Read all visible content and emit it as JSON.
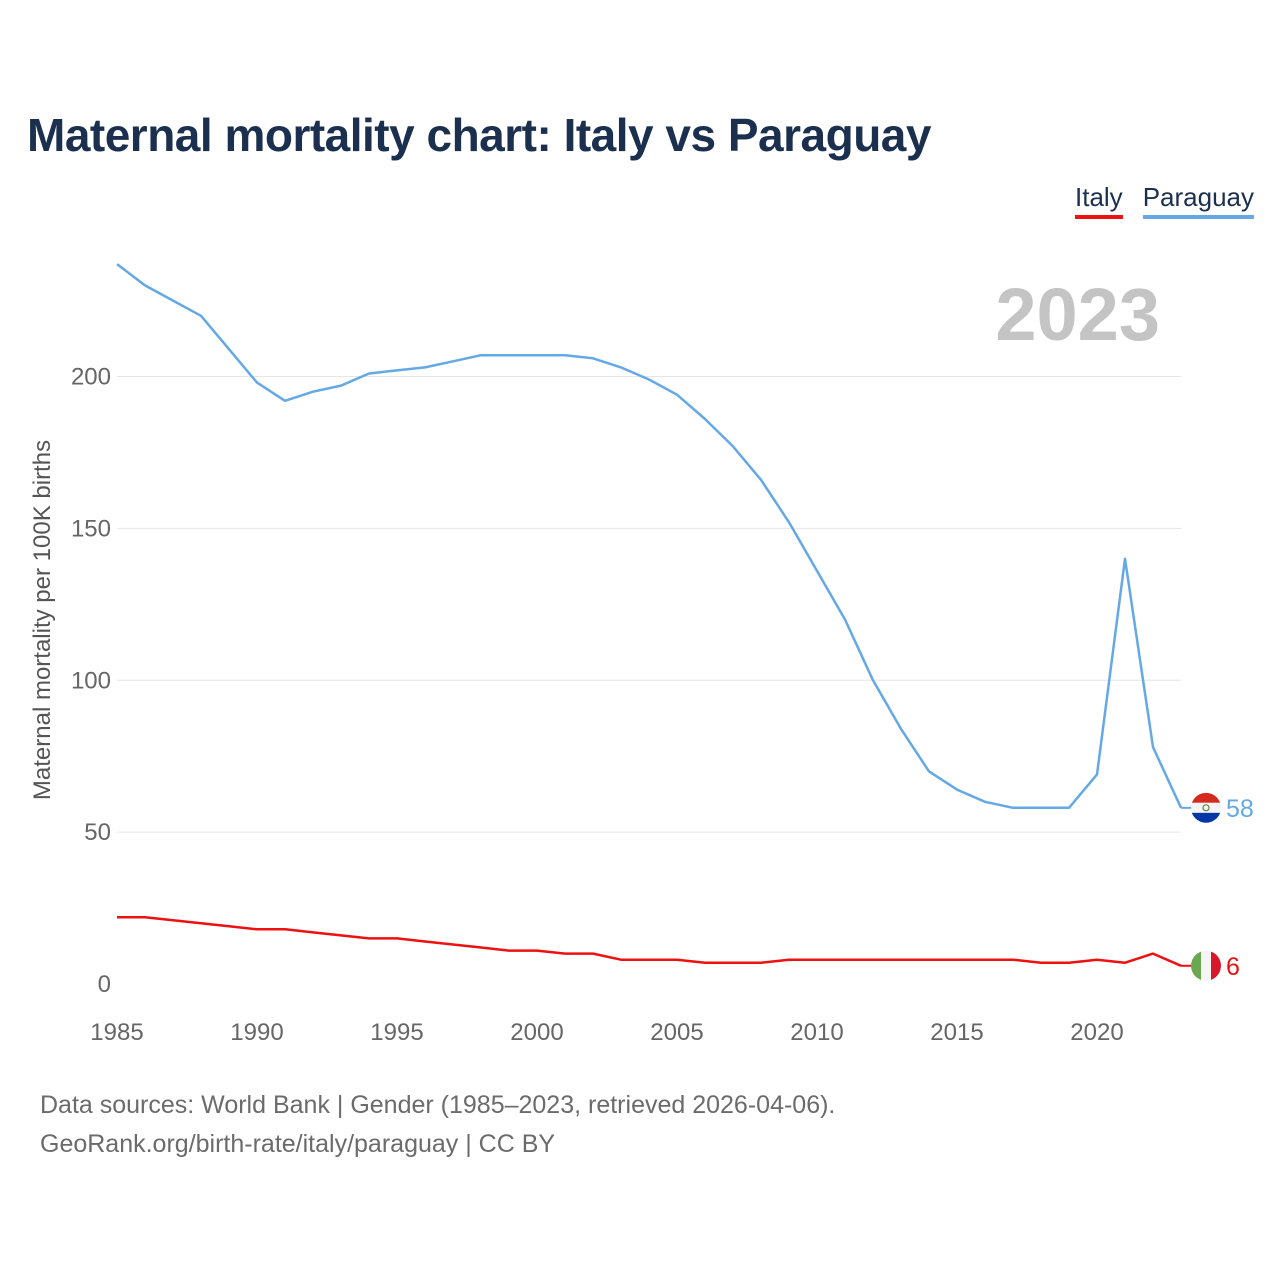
{
  "chart_data": {
    "type": "line",
    "title": "Maternal mortality chart: Italy vs Paraguay",
    "ylabel": "Maternal mortality per 100K births",
    "xlabel": "",
    "year_label": "2023",
    "xlim": [
      1985,
      2023
    ],
    "ylim": [
      0,
      240
    ],
    "x_ticks": [
      1985,
      1990,
      1995,
      2000,
      2005,
      2010,
      2015,
      2020
    ],
    "y_ticks": [
      0,
      50,
      100,
      150,
      200
    ],
    "x": [
      1985,
      1986,
      1987,
      1988,
      1989,
      1990,
      1991,
      1992,
      1993,
      1994,
      1995,
      1996,
      1997,
      1998,
      1999,
      2000,
      2001,
      2002,
      2003,
      2004,
      2005,
      2006,
      2007,
      2008,
      2009,
      2010,
      2011,
      2012,
      2013,
      2014,
      2015,
      2016,
      2017,
      2018,
      2019,
      2020,
      2021,
      2022,
      2023
    ],
    "series": [
      {
        "name": "Italy",
        "color": "#ee1111",
        "end_label": "6",
        "values": [
          22,
          22,
          21,
          20,
          19,
          18,
          18,
          17,
          16,
          15,
          15,
          14,
          13,
          12,
          11,
          11,
          10,
          10,
          8,
          8,
          8,
          7,
          7,
          7,
          8,
          8,
          8,
          8,
          8,
          8,
          8,
          8,
          8,
          7,
          7,
          8,
          7,
          10,
          6
        ]
      },
      {
        "name": "Paraguay",
        "color": "#64a8e6",
        "end_label": "58",
        "values": [
          237,
          230,
          225,
          220,
          209,
          198,
          192,
          195,
          197,
          201,
          202,
          203,
          205,
          207,
          207,
          207,
          207,
          206,
          203,
          199,
          194,
          186,
          177,
          166,
          152,
          136,
          120,
          100,
          84,
          70,
          64,
          60,
          58,
          58,
          58,
          69,
          140,
          78,
          58
        ]
      }
    ]
  },
  "legend": {
    "italy": "Italy",
    "paraguay": "Paraguay"
  },
  "footer": {
    "line1": "Data sources: World Bank | Gender (1985–2023, retrieved 2026-04-06).",
    "line2": "GeoRank.org/birth-rate/italy/paraguay | CC BY"
  },
  "colors": {
    "title": "#1b2f4e",
    "grid": "#e6e6e6",
    "axis_text": "#666666",
    "year_watermark": "#c4c4c4"
  },
  "icons": {
    "italy": "italy-flag-icon",
    "paraguay": "paraguay-flag-icon"
  }
}
